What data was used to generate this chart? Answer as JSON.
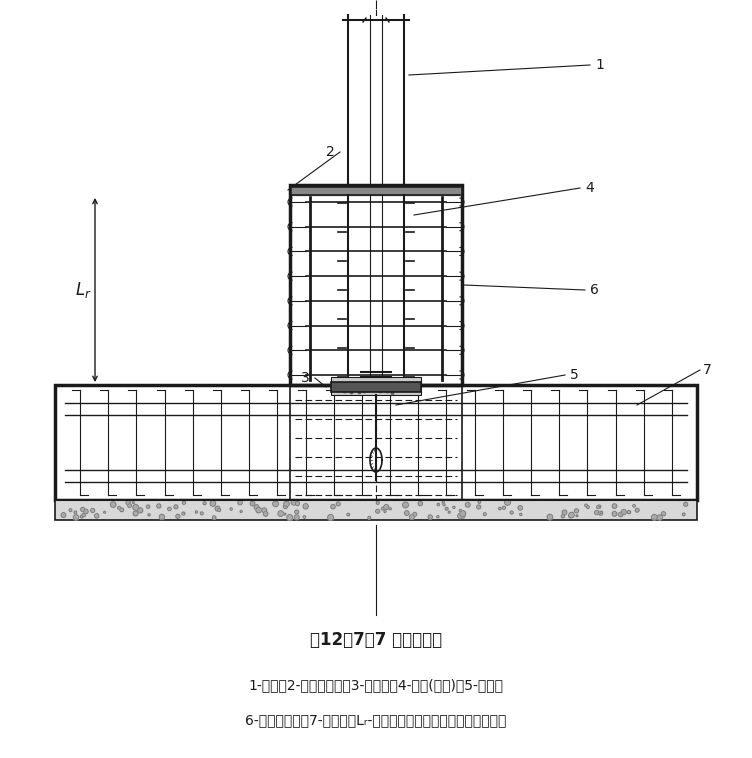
{
  "title": "图12．7．7 外包式柱脚",
  "caption_line1": "1-钒柱；2-水平加劲肸；3-柱底板；4-栓钉(可选)；5-锇栓；",
  "caption_line2": "6-外包混凝土；7-基础梁；Lᵣ-外包混凝土顶部箍筋至柱底板的距离",
  "bg_color": "#ffffff",
  "line_color": "#1a1a1a"
}
